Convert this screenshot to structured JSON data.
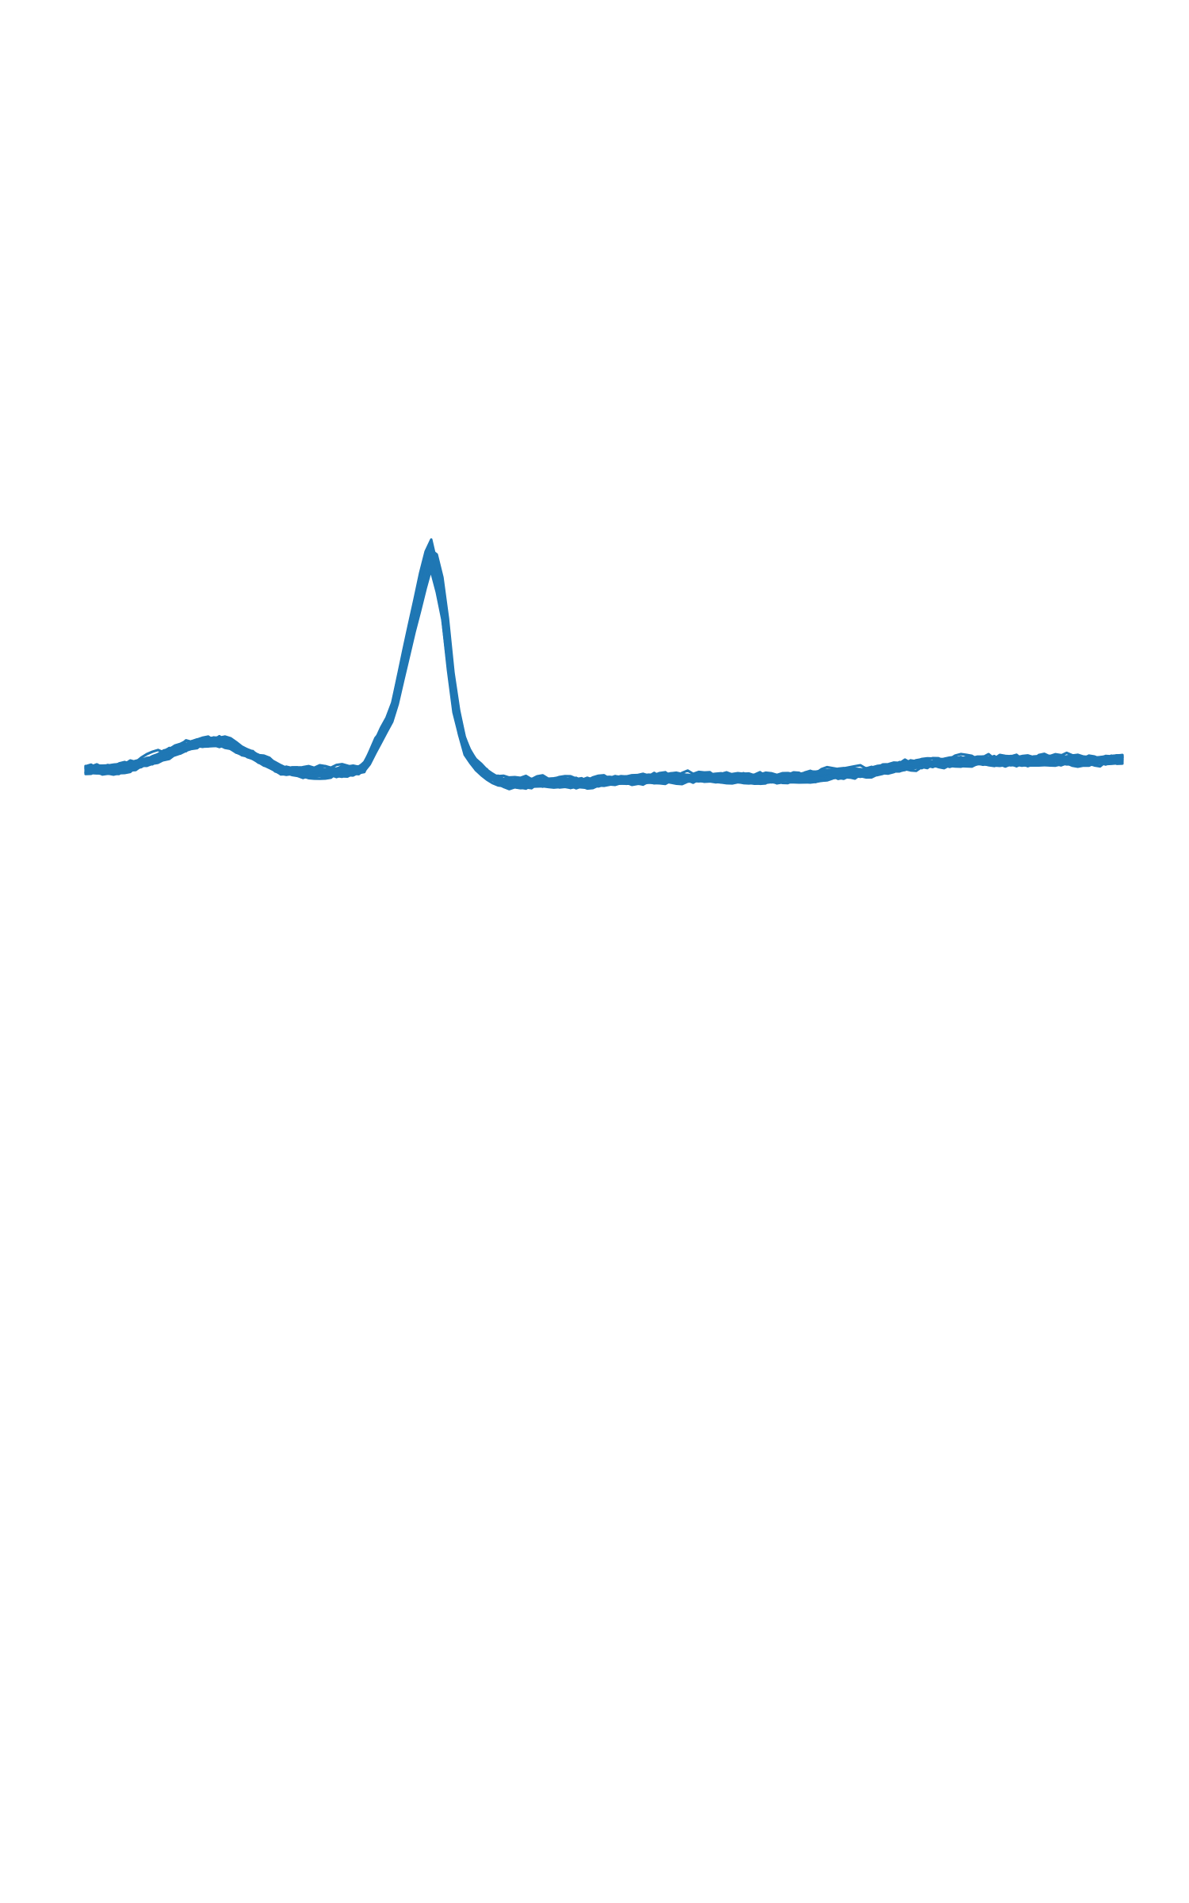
{
  "chart_data": {
    "type": "line",
    "title": "",
    "xlabel": "",
    "ylabel": "",
    "grid": false,
    "axes_visible": false,
    "legend": "none",
    "color": "#1f77b4",
    "xlim": [
      0,
      186
    ],
    "ylim": [
      -1.0,
      1.0
    ],
    "x_step": 1,
    "series_count": 24,
    "template": {
      "x": [
        0,
        5,
        10,
        15,
        20,
        25,
        30,
        35,
        40,
        45,
        50,
        55,
        60,
        62,
        64,
        66,
        68,
        70,
        72,
        74,
        76,
        80,
        85,
        90,
        95,
        100,
        110,
        120,
        130,
        140,
        150,
        160,
        170,
        175,
        180,
        186
      ],
      "y": [
        0.0,
        0.0,
        0.02,
        0.06,
        0.095,
        0.1,
        0.05,
        0.0,
        -0.015,
        -0.01,
        0.0,
        0.2,
        0.65,
        0.8,
        0.64,
        0.26,
        0.08,
        0.02,
        -0.02,
        -0.04,
        -0.05,
        -0.05,
        -0.045,
        -0.05,
        -0.04,
        -0.035,
        -0.03,
        -0.035,
        -0.025,
        -0.01,
        0.02,
        0.03,
        0.03,
        0.035,
        0.03,
        0.04
      ]
    }
  }
}
